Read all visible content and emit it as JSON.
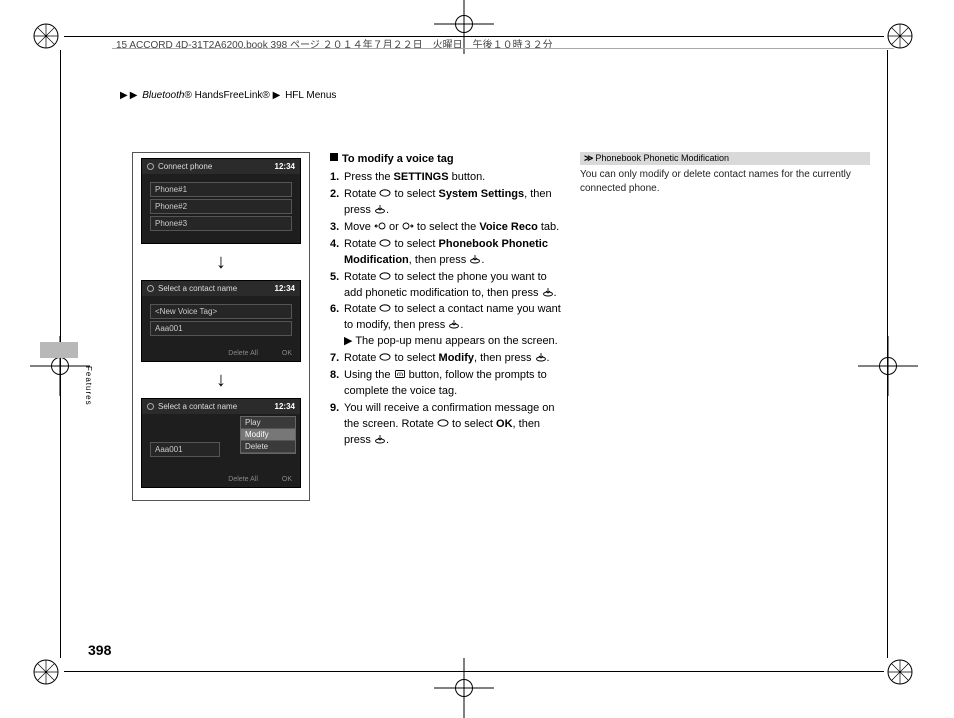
{
  "doc_header": "15 ACCORD 4D-31T2A6200.book  398 ページ  ２０１４年７月２２日　火曜日　午後１０時３２分",
  "breadcrumb": {
    "a": "Bluetooth",
    "reg": "®",
    "b": " HandsFreeLink",
    "c": "HFL Menus"
  },
  "side_tab": "Features",
  "page_number": "398",
  "clock": "12:34",
  "shot1": {
    "title": "Connect phone",
    "rows": [
      "Phone#1",
      "Phone#2",
      "Phone#3"
    ]
  },
  "shot2": {
    "title": "Select a contact name",
    "rows": [
      "<New Voice Tag>",
      "Aaa001"
    ],
    "left_btn": "Delete All",
    "right_btn": "OK"
  },
  "shot3": {
    "title": "Select a contact name",
    "row": "Aaa001",
    "menu": [
      "Play",
      "Modify",
      "Delete"
    ],
    "left_btn": "Delete All",
    "right_btn": "OK"
  },
  "section_title": "To modify a voice tag",
  "steps": [
    {
      "n": "1.",
      "pre": "Press the ",
      "bold": "SETTINGS",
      "post": " button."
    },
    {
      "n": "2.",
      "pre": "Rotate ",
      "icon": "dial",
      "mid": " to select ",
      "bold": "System Settings",
      "post": ", then press ",
      "icon2": "push",
      "end": "."
    },
    {
      "n": "3.",
      "pre": "Move ",
      "icon": "left",
      "mid": " or ",
      "icon_b": "right",
      "mid2": " to select the ",
      "bold": "Voice Reco",
      "post": " tab."
    },
    {
      "n": "4.",
      "pre": "Rotate ",
      "icon": "dial",
      "mid": " to select ",
      "bold": "Phonebook Phonetic Modification",
      "post": ", then press ",
      "icon2": "push",
      "end": "."
    },
    {
      "n": "5.",
      "pre": "Rotate ",
      "icon": "dial",
      "post": " to select the phone you want to add phonetic modification to, then press ",
      "icon2": "push",
      "end": "."
    },
    {
      "n": "6.",
      "pre": "Rotate ",
      "icon": "dial",
      "post": " to select a contact name you want to modify, then press ",
      "icon2": "push",
      "end": ".",
      "note": "The pop-up menu appears on the screen."
    },
    {
      "n": "7.",
      "pre": "Rotate ",
      "icon": "dial",
      "mid": " to select ",
      "bold": "Modify",
      "post": ", then press ",
      "icon2": "push",
      "end": "."
    },
    {
      "n": "8.",
      "pre": "Using the ",
      "icon": "talk",
      "post": " button, follow the prompts to complete the voice tag."
    },
    {
      "n": "9.",
      "pre": "You will receive a confirmation message on the screen. Rotate ",
      "icon": "dial",
      "mid": " to select ",
      "bold": "OK",
      "post": ", then press ",
      "icon2": "push",
      "end": "."
    }
  ],
  "rnote_title": "Phonebook Phonetic Modification",
  "rnote_body": "You can only modify or delete contact names for the currently connected phone."
}
